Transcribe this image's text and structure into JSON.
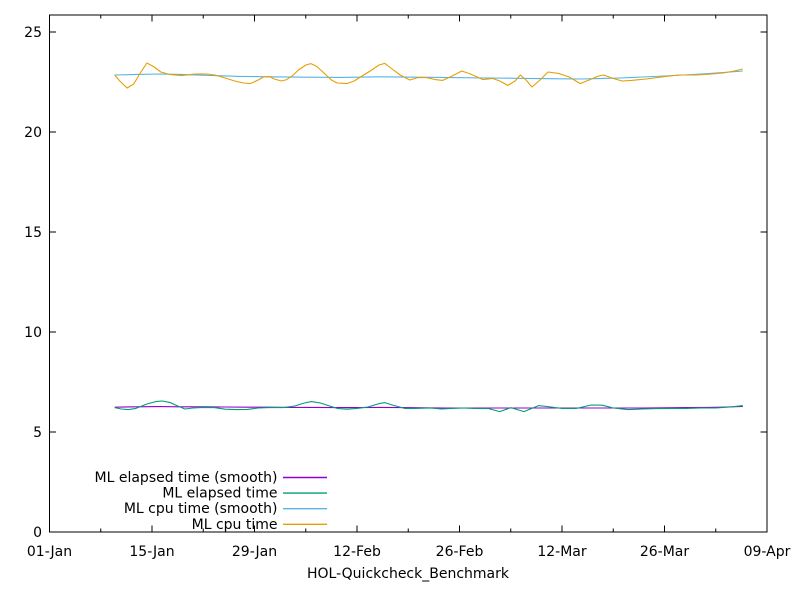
{
  "chart_data": {
    "type": "line",
    "xlabel": "HOL-Quickcheck_Benchmark",
    "background_color": "#ffffff",
    "axis_color": "#000000",
    "grid": false,
    "legend_position": "bottom-left-inside",
    "x_axis": {
      "tick_labels": [
        "01-Jan",
        "15-Jan",
        "29-Jan",
        "12-Feb",
        "26-Feb",
        "12-Mar",
        "26-Mar",
        "09-Apr"
      ],
      "major_tick_days": [
        0,
        14,
        28,
        42,
        56,
        70,
        84,
        98
      ],
      "minor_tick_days": [
        7,
        21,
        35,
        49,
        63,
        77,
        91
      ],
      "range_days": [
        0,
        98
      ]
    },
    "y_axis": {
      "tick_labels": [
        "0",
        "5",
        "10",
        "15",
        "20",
        "25"
      ],
      "tick_values": [
        0,
        5,
        10,
        15,
        20,
        25
      ],
      "range": [
        0,
        25.85
      ]
    },
    "series": [
      {
        "name": "ML elapsed time (smooth)",
        "color": "#9400d3",
        "points": [
          [
            8.9,
            6.24
          ],
          [
            12,
            6.26
          ],
          [
            15,
            6.27
          ],
          [
            18,
            6.26
          ],
          [
            21,
            6.26
          ],
          [
            24,
            6.25
          ],
          [
            27,
            6.24
          ],
          [
            30,
            6.24
          ],
          [
            33,
            6.23
          ],
          [
            36,
            6.23
          ],
          [
            39,
            6.22
          ],
          [
            42,
            6.22
          ],
          [
            45,
            6.23
          ],
          [
            48,
            6.22
          ],
          [
            51,
            6.21
          ],
          [
            54,
            6.2
          ],
          [
            57,
            6.2
          ],
          [
            60,
            6.2
          ],
          [
            63,
            6.2
          ],
          [
            66,
            6.2
          ],
          [
            69,
            6.2
          ],
          [
            72,
            6.2
          ],
          [
            75,
            6.2
          ],
          [
            78,
            6.2
          ],
          [
            81,
            6.2
          ],
          [
            84,
            6.21
          ],
          [
            87,
            6.22
          ],
          [
            90,
            6.23
          ],
          [
            92.5,
            6.25
          ],
          [
            94.7,
            6.28
          ]
        ]
      },
      {
        "name": "ML elapsed time",
        "color": "#009e73",
        "points": [
          [
            8.9,
            6.22
          ],
          [
            9.8,
            6.15
          ],
          [
            10.8,
            6.12
          ],
          [
            11.8,
            6.18
          ],
          [
            13.3,
            6.4
          ],
          [
            14.5,
            6.52
          ],
          [
            15.4,
            6.55
          ],
          [
            16.5,
            6.47
          ],
          [
            17.4,
            6.32
          ],
          [
            18.5,
            6.15
          ],
          [
            19.6,
            6.2
          ],
          [
            21,
            6.23
          ],
          [
            22.5,
            6.22
          ],
          [
            24,
            6.14
          ],
          [
            25.5,
            6.12
          ],
          [
            27,
            6.13
          ],
          [
            28.5,
            6.2
          ],
          [
            30,
            6.22
          ],
          [
            32,
            6.22
          ],
          [
            33.5,
            6.3
          ],
          [
            34.8,
            6.45
          ],
          [
            35.8,
            6.52
          ],
          [
            37,
            6.45
          ],
          [
            38,
            6.33
          ],
          [
            39.3,
            6.18
          ],
          [
            40.6,
            6.14
          ],
          [
            42,
            6.18
          ],
          [
            43.5,
            6.25
          ],
          [
            45,
            6.42
          ],
          [
            45.8,
            6.47
          ],
          [
            47,
            6.33
          ],
          [
            48.5,
            6.18
          ],
          [
            50,
            6.18
          ],
          [
            52,
            6.2
          ],
          [
            53.5,
            6.15
          ],
          [
            55,
            6.18
          ],
          [
            56.5,
            6.2
          ],
          [
            58,
            6.18
          ],
          [
            60,
            6.17
          ],
          [
            61.5,
            6.02
          ],
          [
            63,
            6.22
          ],
          [
            64.8,
            6.02
          ],
          [
            66.8,
            6.32
          ],
          [
            68.5,
            6.25
          ],
          [
            70,
            6.18
          ],
          [
            72,
            6.18
          ],
          [
            74,
            6.35
          ],
          [
            75.5,
            6.34
          ],
          [
            77,
            6.2
          ],
          [
            79,
            6.12
          ],
          [
            81,
            6.15
          ],
          [
            83,
            6.17
          ],
          [
            85,
            6.18
          ],
          [
            87,
            6.18
          ],
          [
            89,
            6.2
          ],
          [
            91,
            6.2
          ],
          [
            93,
            6.25
          ],
          [
            94.7,
            6.32
          ]
        ]
      },
      {
        "name": "ML cpu time (smooth)",
        "color": "#56b4e9",
        "points": [
          [
            8.9,
            22.85
          ],
          [
            12,
            22.88
          ],
          [
            15,
            22.9
          ],
          [
            18,
            22.88
          ],
          [
            22,
            22.83
          ],
          [
            26,
            22.78
          ],
          [
            30,
            22.76
          ],
          [
            35,
            22.74
          ],
          [
            40,
            22.73
          ],
          [
            45,
            22.76
          ],
          [
            50,
            22.74
          ],
          [
            55,
            22.72
          ],
          [
            60,
            22.7
          ],
          [
            65,
            22.68
          ],
          [
            70,
            22.66
          ],
          [
            72.5,
            22.65
          ],
          [
            75,
            22.67
          ],
          [
            78,
            22.7
          ],
          [
            81,
            22.75
          ],
          [
            84,
            22.8
          ],
          [
            86.5,
            22.85
          ],
          [
            89,
            22.9
          ],
          [
            91,
            22.95
          ],
          [
            93,
            23.0
          ],
          [
            94.7,
            23.05
          ]
        ]
      },
      {
        "name": "ML cpu time",
        "color": "#e69f00",
        "points": [
          [
            8.9,
            22.85
          ],
          [
            9.6,
            22.55
          ],
          [
            10.6,
            22.2
          ],
          [
            11.5,
            22.4
          ],
          [
            12.4,
            22.95
          ],
          [
            13.3,
            23.45
          ],
          [
            14.3,
            23.25
          ],
          [
            15.2,
            23.0
          ],
          [
            16.5,
            22.87
          ],
          [
            18,
            22.82
          ],
          [
            19.9,
            22.9
          ],
          [
            21.5,
            22.9
          ],
          [
            22.6,
            22.85
          ],
          [
            24,
            22.7
          ],
          [
            25.3,
            22.55
          ],
          [
            26.5,
            22.45
          ],
          [
            27.4,
            22.42
          ],
          [
            28.5,
            22.6
          ],
          [
            29.2,
            22.75
          ],
          [
            30,
            22.78
          ],
          [
            30.7,
            22.65
          ],
          [
            31.7,
            22.55
          ],
          [
            32.4,
            22.62
          ],
          [
            33.2,
            22.82
          ],
          [
            34,
            23.1
          ],
          [
            35,
            23.35
          ],
          [
            35.7,
            23.42
          ],
          [
            36.5,
            23.28
          ],
          [
            37.4,
            22.98
          ],
          [
            38.5,
            22.6
          ],
          [
            39.3,
            22.45
          ],
          [
            40.6,
            22.42
          ],
          [
            41.6,
            22.55
          ],
          [
            42.7,
            22.8
          ],
          [
            43.8,
            23.05
          ],
          [
            45,
            23.35
          ],
          [
            45.8,
            23.43
          ],
          [
            46.8,
            23.15
          ],
          [
            47.9,
            22.85
          ],
          [
            49.2,
            22.6
          ],
          [
            50.3,
            22.72
          ],
          [
            51.5,
            22.72
          ],
          [
            52.7,
            22.62
          ],
          [
            53.7,
            22.58
          ],
          [
            55,
            22.8
          ],
          [
            56.3,
            23.05
          ],
          [
            57.5,
            22.9
          ],
          [
            59.2,
            22.62
          ],
          [
            60.5,
            22.68
          ],
          [
            61.5,
            22.55
          ],
          [
            62.6,
            22.33
          ],
          [
            63.6,
            22.55
          ],
          [
            64.3,
            22.85
          ],
          [
            65.1,
            22.6
          ],
          [
            65.9,
            22.25
          ],
          [
            67,
            22.6
          ],
          [
            68.1,
            23.0
          ],
          [
            69.5,
            22.93
          ],
          [
            71,
            22.75
          ],
          [
            72.5,
            22.42
          ],
          [
            73.7,
            22.6
          ],
          [
            75,
            22.8
          ],
          [
            75.7,
            22.85
          ],
          [
            76.8,
            22.7
          ],
          [
            78.2,
            22.55
          ],
          [
            79.5,
            22.58
          ],
          [
            81.5,
            22.65
          ],
          [
            84,
            22.77
          ],
          [
            86,
            22.85
          ],
          [
            88.4,
            22.85
          ],
          [
            90.5,
            22.9
          ],
          [
            92,
            22.95
          ],
          [
            93.5,
            23.05
          ],
          [
            94.7,
            23.15
          ]
        ]
      }
    ]
  }
}
